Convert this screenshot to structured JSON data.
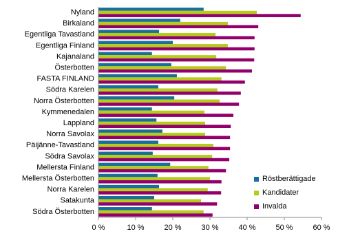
{
  "chart_data": {
    "type": "hbar",
    "categories": [
      "Nyland",
      "Birkaland",
      "Egentliga Tavastland",
      "Egentliga Finland",
      "Kajanaland",
      "Österbotten",
      "FASTA FINLAND",
      "Södra Karelen",
      "Norra Österbotten",
      "Kymmenedalen",
      "Lappland",
      "Norra Savolax",
      "Päijänne-Tavastland",
      "Södra Savolax",
      "Mellersta Finland",
      "Mellersta Österbotten",
      "Norra Karelen",
      "Satakunta",
      "Södra Österbotten"
    ],
    "series": [
      {
        "name": "Röstberättigade",
        "color": "#1a6e9b",
        "values": [
          28.3,
          22.0,
          16.3,
          20.0,
          14.4,
          19.6,
          21.1,
          16.1,
          20.4,
          14.4,
          15.6,
          17.2,
          16.1,
          14.6,
          19.3,
          15.9,
          16.3,
          15.0,
          14.4
        ]
      },
      {
        "name": "Kandidater",
        "color": "#b5cc1a",
        "values": [
          42.6,
          34.8,
          31.5,
          34.8,
          31.7,
          34.3,
          33.1,
          32.0,
          32.6,
          28.5,
          28.7,
          28.7,
          30.9,
          30.6,
          29.6,
          30.0,
          29.4,
          27.6,
          28.3
        ]
      },
      {
        "name": "Invalda",
        "color": "#92006b",
        "values": [
          54.4,
          43.0,
          42.0,
          42.0,
          41.9,
          41.3,
          39.4,
          38.3,
          37.8,
          36.3,
          35.6,
          35.4,
          35.4,
          35.2,
          34.3,
          33.1,
          33.0,
          31.9,
          30.7
        ]
      }
    ],
    "xlim": [
      0,
      60
    ],
    "xticks": [
      {
        "value": 0,
        "label": "0 %"
      },
      {
        "value": 10,
        "label": "10 %"
      },
      {
        "value": 20,
        "label": "20 %"
      },
      {
        "value": 30,
        "label": "30 %"
      },
      {
        "value": 40,
        "label": "40 %"
      },
      {
        "value": 50,
        "label": "50 %"
      },
      {
        "value": 60,
        "label": "60 %"
      }
    ],
    "legend": "lower right"
  }
}
